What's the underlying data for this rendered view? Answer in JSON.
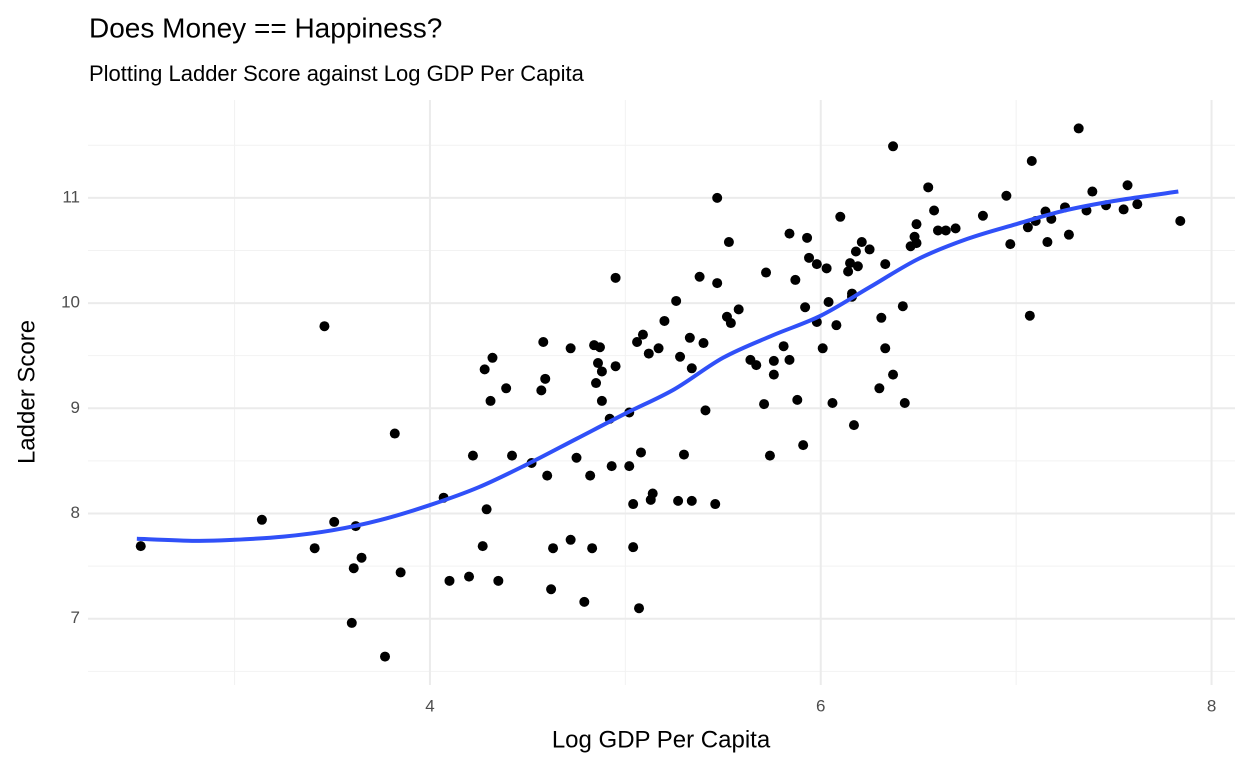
{
  "chart_data": {
    "type": "scatter",
    "title": "Does Money == Happiness?",
    "subtitle": "Plotting Ladder Score against Log GDP Per Capita",
    "x_label": "Log GDP Per Capita",
    "y_label": "Ladder Score",
    "xlim": [
      2.25,
      8.12
    ],
    "ylim": [
      6.37,
      11.93
    ],
    "xticks": [
      4,
      6,
      8
    ],
    "yticks": [
      7,
      8,
      9,
      10,
      11
    ],
    "grid": true,
    "color": "#000000",
    "x": [
      2.52,
      3.14,
      3.41,
      3.46,
      3.51,
      3.6,
      3.61,
      3.62,
      3.65,
      3.77,
      3.82,
      3.85,
      4.07,
      4.1,
      4.2,
      4.22,
      4.27,
      4.28,
      4.29,
      4.31,
      4.32,
      4.35,
      4.39,
      4.42,
      4.52,
      4.57,
      4.59,
      4.58,
      4.6,
      4.62,
      4.63,
      4.72,
      4.72,
      4.75,
      4.79,
      4.82,
      4.83,
      4.84,
      4.85,
      4.86,
      4.87,
      4.88,
      4.88,
      4.92,
      4.93,
      4.95,
      4.95,
      5.02,
      5.02,
      5.04,
      5.04,
      5.06,
      5.07,
      5.08,
      5.09,
      5.12,
      5.13,
      5.14,
      5.17,
      5.2,
      5.26,
      5.27,
      5.28,
      5.3,
      5.33,
      5.34,
      5.34,
      5.38,
      5.4,
      5.41,
      5.46,
      5.47,
      5.47,
      5.52,
      5.53,
      5.54,
      5.58,
      5.64,
      5.67,
      5.72,
      5.71,
      5.74,
      5.76,
      5.76,
      5.81,
      5.84,
      5.84,
      5.87,
      5.88,
      5.91,
      5.92,
      5.93,
      5.94,
      5.98,
      5.98,
      6.01,
      6.03,
      6.04,
      6.06,
      6.08,
      6.1,
      6.14,
      6.15,
      6.16,
      6.16,
      6.17,
      6.18,
      6.19,
      6.21,
      6.25,
      6.3,
      6.31,
      6.33,
      6.33,
      6.37,
      6.37,
      6.42,
      6.43,
      6.46,
      6.48,
      6.49,
      6.49,
      6.55,
      6.58,
      6.6,
      6.64,
      6.69,
      6.83,
      6.95,
      6.97,
      7.07,
      7.06,
      7.08,
      7.1,
      7.15,
      7.16,
      7.18,
      7.25,
      7.27,
      7.32,
      7.36,
      7.39,
      7.46,
      7.55,
      7.57,
      7.62,
      7.84
    ],
    "values": [
      7.69,
      7.94,
      7.67,
      9.78,
      7.92,
      6.96,
      7.48,
      7.88,
      7.58,
      6.64,
      8.76,
      7.44,
      8.15,
      7.36,
      7.4,
      8.55,
      7.69,
      9.37,
      8.04,
      9.07,
      9.48,
      7.36,
      9.19,
      8.55,
      8.48,
      9.17,
      9.28,
      9.63,
      8.36,
      7.28,
      7.67,
      7.75,
      9.57,
      8.53,
      7.16,
      8.36,
      7.67,
      9.6,
      9.24,
      9.43,
      9.58,
      9.35,
      9.07,
      8.9,
      8.45,
      10.24,
      9.4,
      8.45,
      8.96,
      8.09,
      7.68,
      9.63,
      7.1,
      8.58,
      9.7,
      9.52,
      8.13,
      8.19,
      9.57,
      9.83,
      10.02,
      8.12,
      9.49,
      8.56,
      9.67,
      9.38,
      8.12,
      10.25,
      9.62,
      8.98,
      8.09,
      11.0,
      10.19,
      9.87,
      10.58,
      9.81,
      9.94,
      9.46,
      9.41,
      10.29,
      9.04,
      8.55,
      9.45,
      9.32,
      9.59,
      9.46,
      10.66,
      10.22,
      9.08,
      8.65,
      9.96,
      10.62,
      10.43,
      9.82,
      10.37,
      9.57,
      10.33,
      10.01,
      9.05,
      9.79,
      10.82,
      10.3,
      10.38,
      10.09,
      10.06,
      8.84,
      10.49,
      10.35,
      10.58,
      10.51,
      9.19,
      9.86,
      10.37,
      9.57,
      9.32,
      11.49,
      9.97,
      9.05,
      10.54,
      10.63,
      10.57,
      10.75,
      11.1,
      10.88,
      10.69,
      10.69,
      10.71,
      10.83,
      11.02,
      10.56,
      9.88,
      10.72,
      11.35,
      10.78,
      10.87,
      10.58,
      10.8,
      10.91,
      10.65,
      11.66,
      10.88,
      11.06,
      10.93,
      10.89,
      11.12,
      10.94,
      10.78
    ],
    "smooth": {
      "color": "#3050f8",
      "x": [
        2.5,
        2.8,
        3.0,
        3.25,
        3.5,
        3.75,
        4.0,
        4.25,
        4.5,
        4.75,
        5.0,
        5.25,
        5.5,
        5.75,
        6.0,
        6.25,
        6.5,
        6.75,
        7.0,
        7.25,
        7.5,
        7.83
      ],
      "values": [
        7.76,
        7.74,
        7.75,
        7.78,
        7.84,
        7.94,
        8.08,
        8.25,
        8.47,
        8.71,
        8.95,
        9.18,
        9.48,
        9.69,
        9.88,
        10.15,
        10.42,
        10.61,
        10.75,
        10.88,
        10.97,
        11.06
      ]
    }
  }
}
